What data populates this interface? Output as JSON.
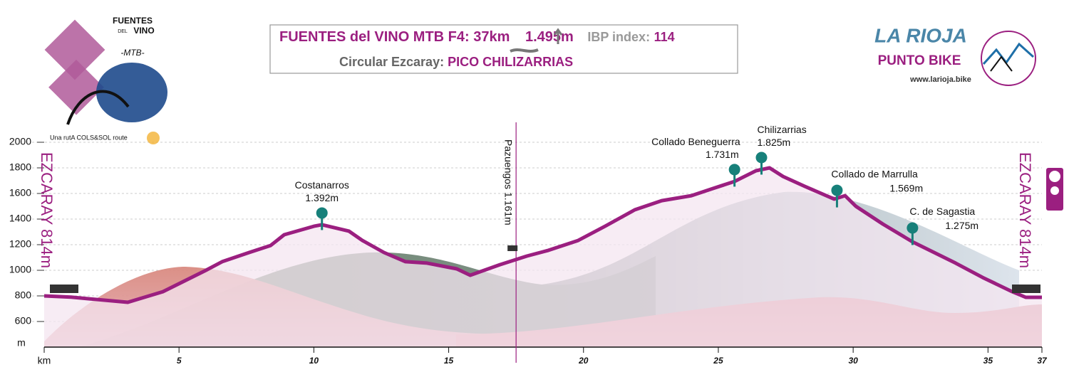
{
  "chart_data": {
    "type": "area",
    "title": "FUENTES del VINO MTB F4:",
    "distance": "37km",
    "climb": "1.495m",
    "ibp_label": "IBP index:",
    "ibp": "114",
    "subtitle_prefix": "Circular Ezcaray:",
    "subtitle": "PICO CHILIZARRIAS",
    "brand_left": {
      "line1": "FUENTES",
      "line2": "DEL",
      "line3": "VINO",
      "line4": "-MTB-",
      "tagline": "Una rutA COLS&SOL route"
    },
    "brand_right": {
      "name": "LA RIOJA",
      "sub": "PUNTO BIKE",
      "url": "www.larioja.bike"
    },
    "start_label": "EZCARAY 814m",
    "end_label": "EZCARAY 814m",
    "x_label": "km",
    "y_label": "m",
    "color": "#9b1f80",
    "fill": "#f4e6f0",
    "grid": true,
    "xlim": [
      0,
      37
    ],
    "ylim": [
      400,
      2000
    ],
    "xticks": [
      5,
      10,
      15,
      20,
      25,
      30,
      35,
      37
    ],
    "yticks": [
      600,
      800,
      1000,
      1200,
      1400,
      1600,
      1800,
      2000
    ],
    "x": [
      0,
      1.0,
      3.1,
      4.4,
      6.0,
      6.6,
      7.6,
      8.4,
      8.9,
      10.0,
      10.3,
      11.3,
      11.8,
      12.6,
      13.4,
      14.2,
      15.3,
      15.8,
      16.9,
      17.9,
      18.7,
      19.8,
      20.8,
      21.9,
      22.9,
      24.0,
      24.8,
      25.6,
      26.4,
      26.9,
      27.4,
      28.2,
      29.3,
      29.7,
      30.1,
      31.1,
      32.2,
      33.8,
      34.8,
      35.9,
      36.4,
      37
    ],
    "values": [
      800,
      790,
      750,
      833,
      1000,
      1067,
      1139,
      1194,
      1278,
      1344,
      1356,
      1306,
      1233,
      1139,
      1067,
      1056,
      1011,
      961,
      1044,
      1111,
      1156,
      1233,
      1344,
      1472,
      1544,
      1583,
      1639,
      1694,
      1778,
      1800,
      1733,
      1656,
      1556,
      1583,
      1500,
      1361,
      1222,
      1056,
      944,
      833,
      789,
      789
    ],
    "annotations": [
      {
        "label": "Costanarros",
        "value": 1392,
        "value_label": "1.392m",
        "x": 10.3
      },
      {
        "label": "Collado Beneguerra",
        "value": 1731,
        "value_label": "1.731m",
        "x": 25.6
      },
      {
        "label": "Chilizarrias",
        "value": 1825,
        "value_label": "1.825m",
        "x": 26.6
      },
      {
        "label": "Collado de Marrulla",
        "value": 1569,
        "value_label": "1.569m",
        "x": 29.4
      },
      {
        "label": "C. de Sagastia",
        "value": 1275,
        "value_label": "1.275m",
        "x": 32.2
      }
    ],
    "waypoint": {
      "label": "Pazuengos 1.161m",
      "value": 1161,
      "x": 17.5
    }
  }
}
